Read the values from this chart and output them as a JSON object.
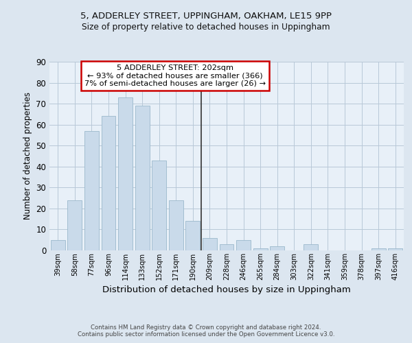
{
  "title1": "5, ADDERLEY STREET, UPPINGHAM, OAKHAM, LE15 9PP",
  "title2": "Size of property relative to detached houses in Uppingham",
  "xlabel": "Distribution of detached houses by size in Uppingham",
  "ylabel": "Number of detached properties",
  "categories": [
    "39sqm",
    "58sqm",
    "77sqm",
    "96sqm",
    "114sqm",
    "133sqm",
    "152sqm",
    "171sqm",
    "190sqm",
    "209sqm",
    "228sqm",
    "246sqm",
    "265sqm",
    "284sqm",
    "303sqm",
    "322sqm",
    "341sqm",
    "359sqm",
    "378sqm",
    "397sqm",
    "416sqm"
  ],
  "values": [
    5,
    24,
    57,
    64,
    73,
    69,
    43,
    24,
    14,
    6,
    3,
    5,
    1,
    2,
    0,
    3,
    0,
    0,
    0,
    1,
    1
  ],
  "bar_color": "#c9daea",
  "bar_edge_color": "#9ab8cc",
  "vline_color": "#333333",
  "annotation_text": "5 ADDERLEY STREET: 202sqm\n← 93% of detached houses are smaller (366)\n7% of semi-detached houses are larger (26) →",
  "annotation_box_color": "#ffffff",
  "annotation_box_edge_color": "#cc0000",
  "ylim": [
    0,
    90
  ],
  "yticks": [
    0,
    10,
    20,
    30,
    40,
    50,
    60,
    70,
    80,
    90
  ],
  "footer": "Contains HM Land Registry data © Crown copyright and database right 2024.\nContains public sector information licensed under the Open Government Licence v3.0.",
  "bg_color": "#dce6f0",
  "plot_bg_color": "#e8f0f8",
  "grid_color": "#b8c8d8"
}
